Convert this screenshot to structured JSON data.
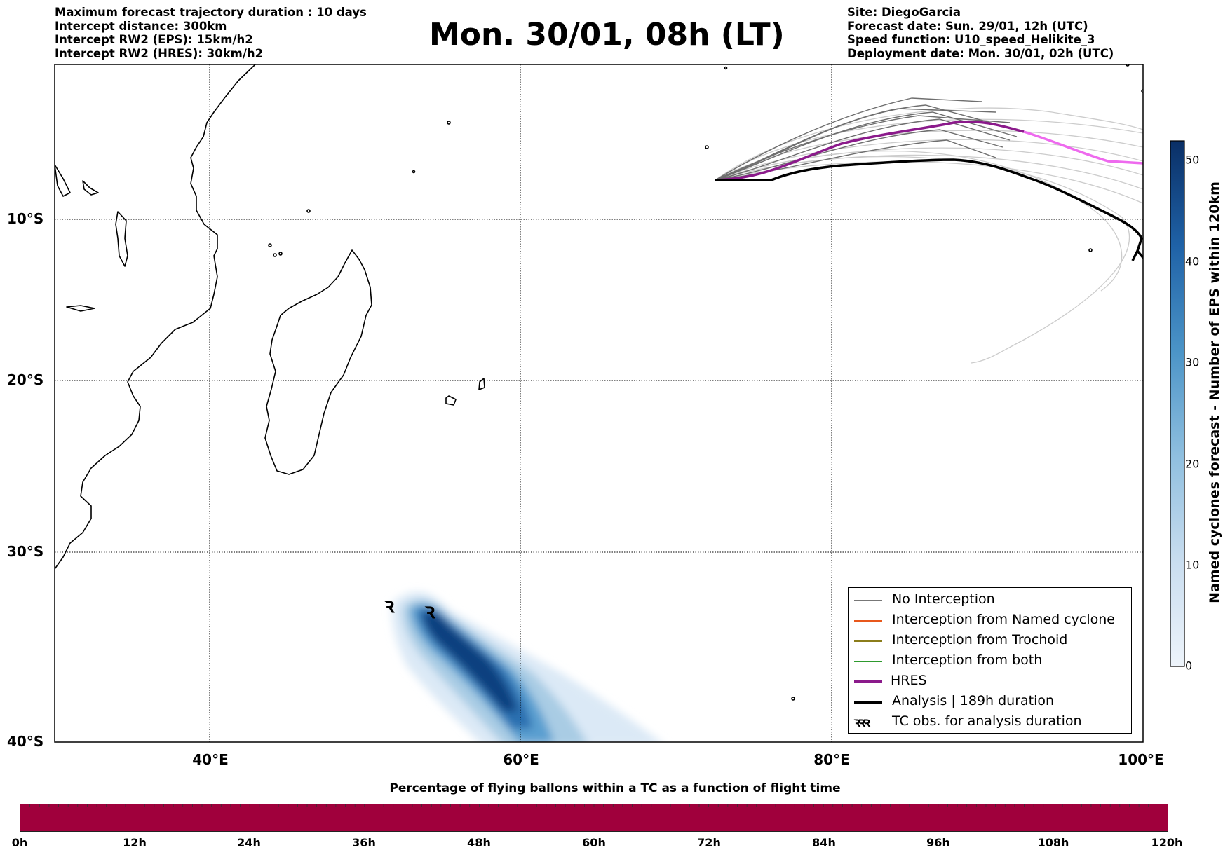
{
  "header_left": [
    "Maximum forecast trajectory duration : 10 days",
    "Intercept distance: 300km",
    "Intercept RW2 (EPS):  15km/h2",
    "Intercept RW2 (HRES): 30km/h2"
  ],
  "title": "Mon. 30/01, 08h (LT)",
  "header_right": [
    "Site: DiegoGarcia",
    "Forecast date: Sun. 29/01, 12h (UTC)",
    "Speed function: U10_speed_Helikite_3",
    "Deployment date: Mon. 30/01, 02h (UTC)"
  ],
  "map": {
    "lat_labels": [
      "10°S",
      "20°S",
      "30°S",
      "40°S"
    ],
    "lon_labels": [
      "40°E",
      "60°E",
      "80°E",
      "100°E"
    ],
    "lon_range": [
      30,
      100
    ],
    "lat_range": [
      -40,
      0
    ],
    "gridlines": true
  },
  "legend": {
    "items": [
      {
        "label": "No Interception",
        "color": "#777777",
        "kind": "thin"
      },
      {
        "label": "Interception from Named cyclone",
        "color": "#e8581c",
        "kind": "thin"
      },
      {
        "label": "Interception from Trochoid",
        "color": "#8b7d1b",
        "kind": "thin"
      },
      {
        "label": "Interception from both",
        "color": "#2e9a2e",
        "kind": "thin"
      },
      {
        "label": "HRES",
        "color": "#8b1a8b",
        "kind": "thick"
      },
      {
        "label": "Analysis | 189h duration",
        "color": "#000000",
        "kind": "thick"
      },
      {
        "label": "TC obs. for analysis duration",
        "color": "#000000",
        "kind": "symbol"
      }
    ]
  },
  "colorbar": {
    "title": "Named cyclones forecast - Number of EPS within 120km",
    "ticks": [
      "0",
      "10",
      "20",
      "30",
      "40",
      "50"
    ],
    "range": [
      0,
      52
    ]
  },
  "bottom": {
    "title": "Percentage of flying ballons within a TC as a function of flight time",
    "ticks": [
      "0h",
      "12h",
      "24h",
      "36h",
      "48h",
      "60h",
      "72h",
      "84h",
      "96h",
      "108h",
      "120h"
    ],
    "fill_color": "#a0003c",
    "values": [
      1,
      1,
      1,
      1,
      1,
      1,
      1,
      1,
      1,
      1,
      1
    ]
  },
  "colors": {
    "hres": "#8b1a8b",
    "hres_tail": "#ee6aee",
    "analysis": "#000000",
    "eps_near": "#6e6e6e",
    "eps_far": "#cccccc"
  },
  "cyclone_symbol": "ꝛ"
}
